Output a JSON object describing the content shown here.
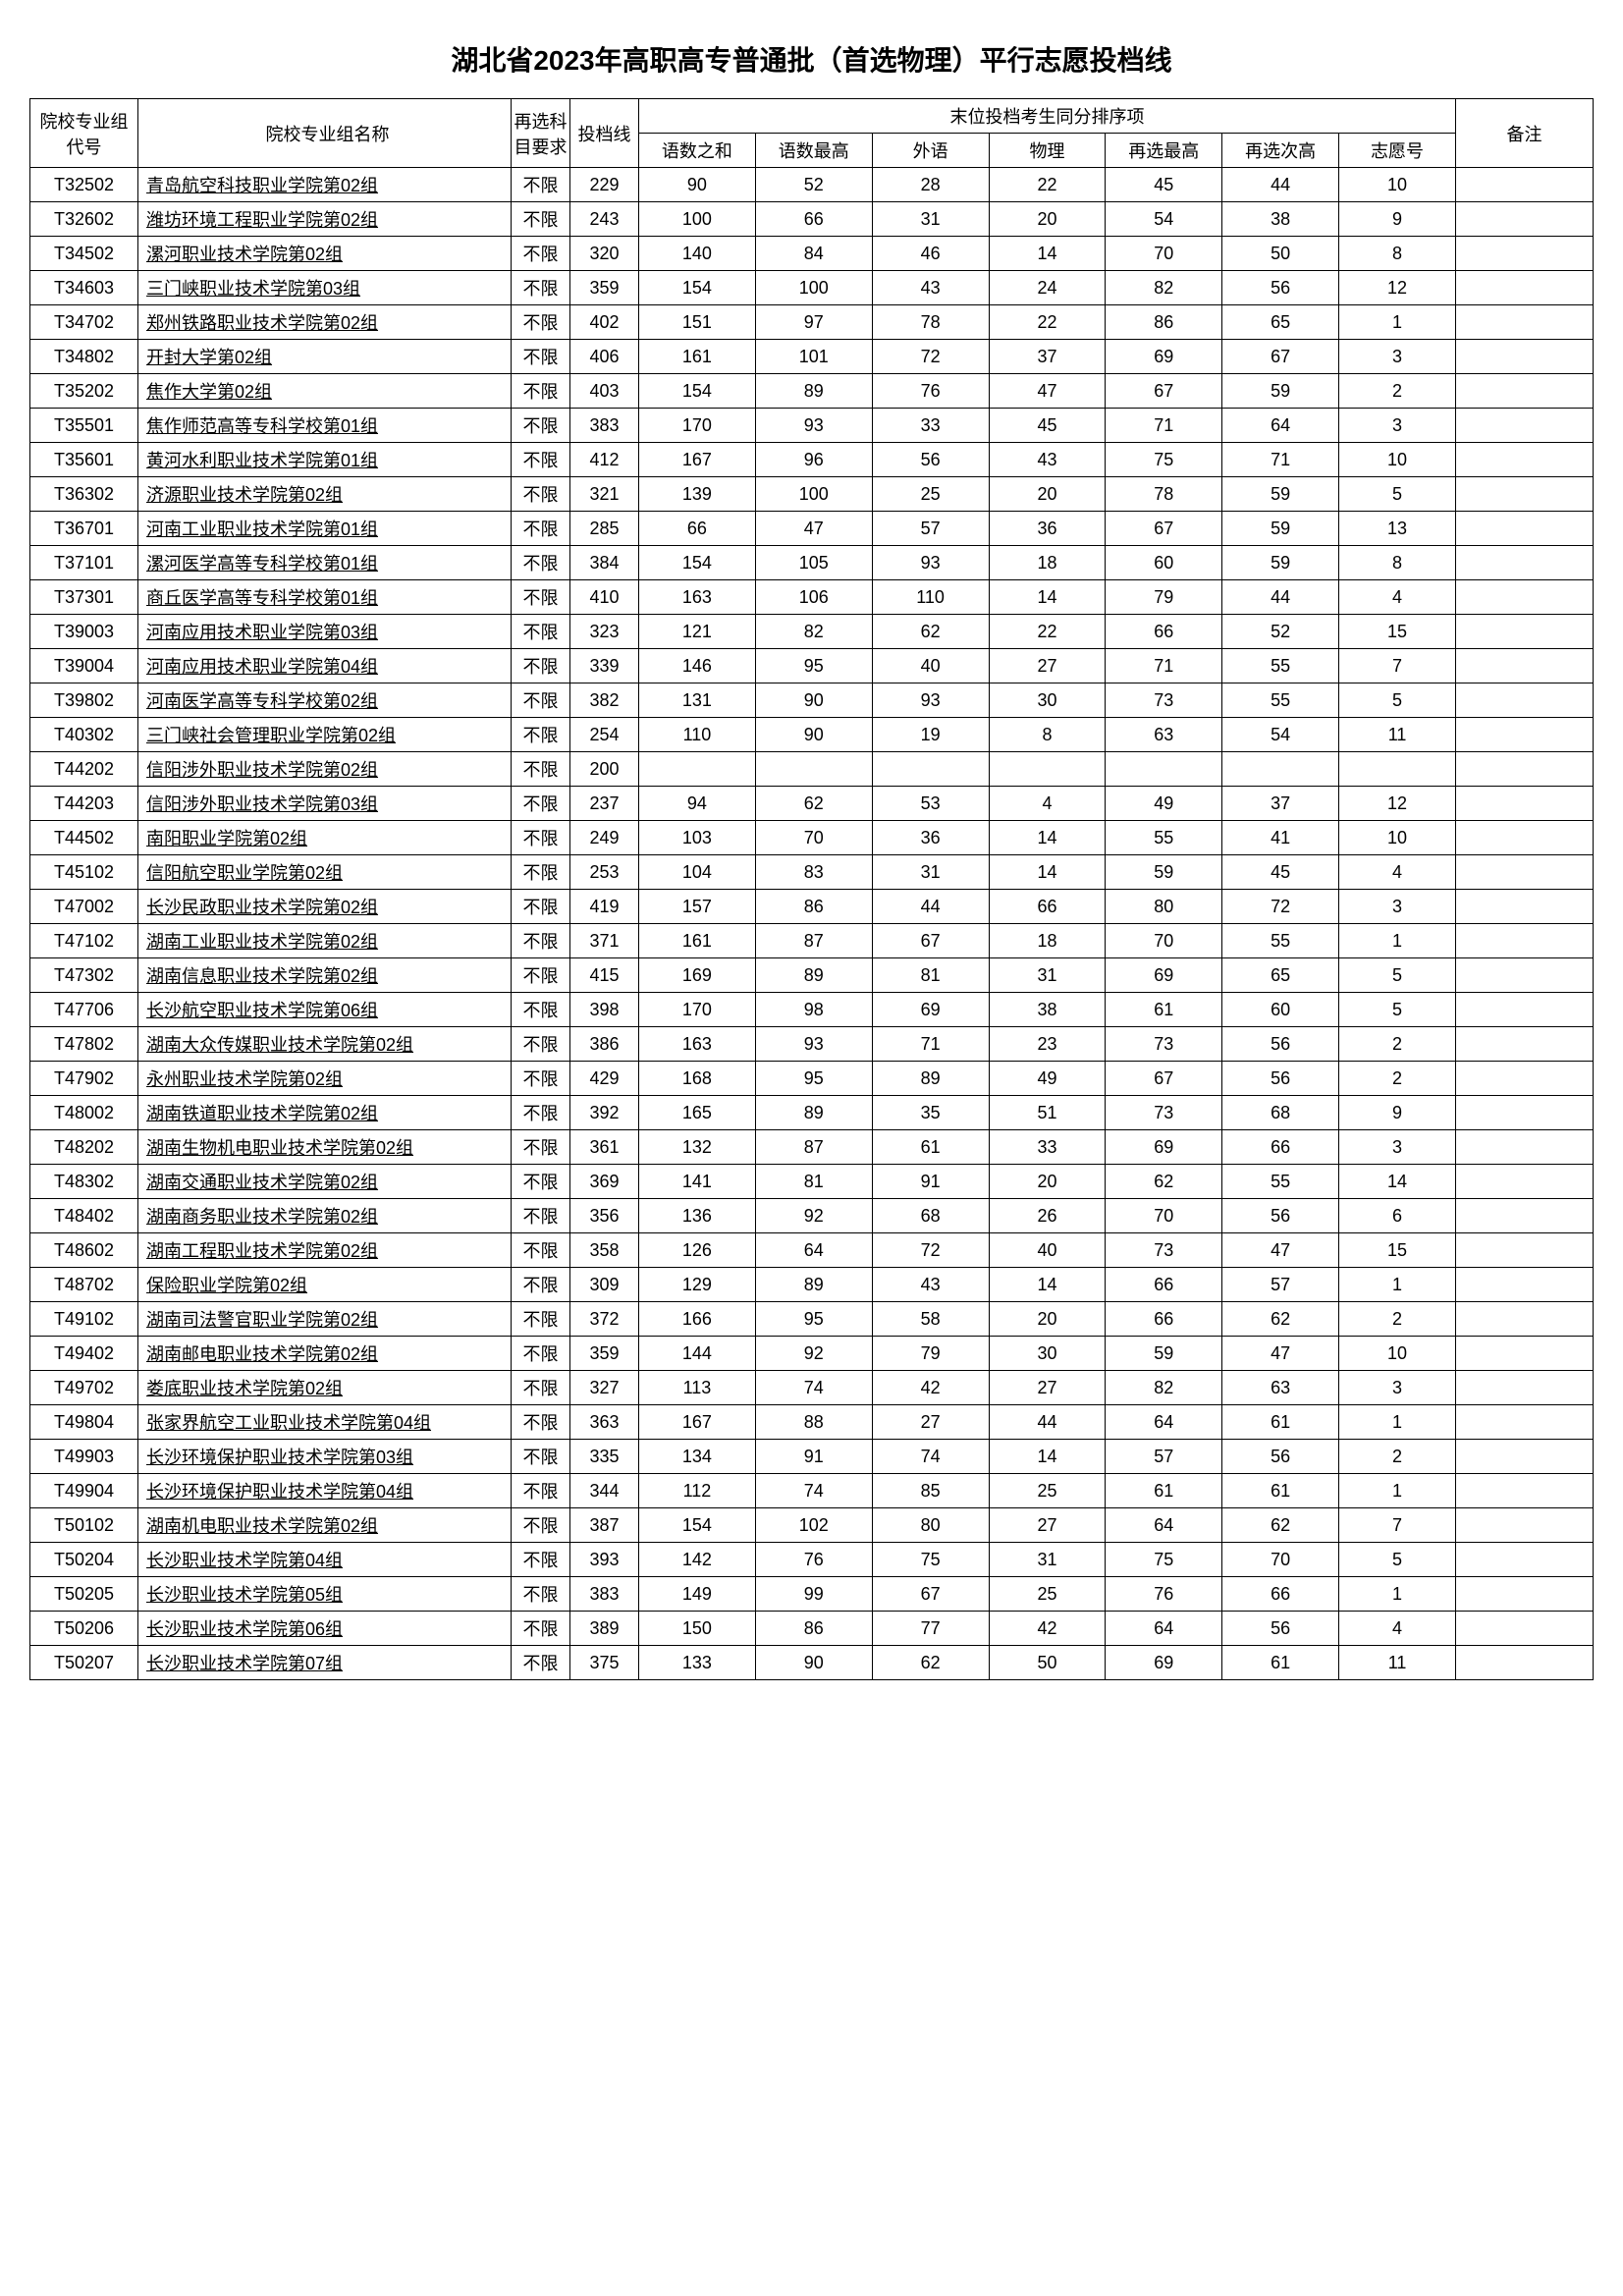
{
  "title": "湖北省2023年高职高专普通批（首选物理）平行志愿投档线",
  "headers": {
    "code": "院校专业组代号",
    "name": "院校专业组名称",
    "req": "再选科目要求",
    "score": "投档线",
    "tiebreak": "末位投档考生同分排序项",
    "yushu_sum": "语数之和",
    "yushu_max": "语数最高",
    "waiyu": "外语",
    "wuli": "物理",
    "zaixuan_max": "再选最高",
    "zaixuan_second": "再选次高",
    "zhiyuan": "志愿号",
    "remark": "备注"
  },
  "rows": [
    {
      "code": "T32502",
      "name": "青岛航空科技职业学院第02组",
      "req": "不限",
      "score": "229",
      "c1": "90",
      "c2": "52",
      "c3": "28",
      "c4": "22",
      "c5": "45",
      "c6": "44",
      "c7": "10",
      "remark": ""
    },
    {
      "code": "T32602",
      "name": "潍坊环境工程职业学院第02组",
      "req": "不限",
      "score": "243",
      "c1": "100",
      "c2": "66",
      "c3": "31",
      "c4": "20",
      "c5": "54",
      "c6": "38",
      "c7": "9",
      "remark": ""
    },
    {
      "code": "T34502",
      "name": "漯河职业技术学院第02组",
      "req": "不限",
      "score": "320",
      "c1": "140",
      "c2": "84",
      "c3": "46",
      "c4": "14",
      "c5": "70",
      "c6": "50",
      "c7": "8",
      "remark": ""
    },
    {
      "code": "T34603",
      "name": "三门峡职业技术学院第03组",
      "req": "不限",
      "score": "359",
      "c1": "154",
      "c2": "100",
      "c3": "43",
      "c4": "24",
      "c5": "82",
      "c6": "56",
      "c7": "12",
      "remark": ""
    },
    {
      "code": "T34702",
      "name": "郑州铁路职业技术学院第02组",
      "req": "不限",
      "score": "402",
      "c1": "151",
      "c2": "97",
      "c3": "78",
      "c4": "22",
      "c5": "86",
      "c6": "65",
      "c7": "1",
      "remark": ""
    },
    {
      "code": "T34802",
      "name": "开封大学第02组",
      "req": "不限",
      "score": "406",
      "c1": "161",
      "c2": "101",
      "c3": "72",
      "c4": "37",
      "c5": "69",
      "c6": "67",
      "c7": "3",
      "remark": ""
    },
    {
      "code": "T35202",
      "name": "焦作大学第02组",
      "req": "不限",
      "score": "403",
      "c1": "154",
      "c2": "89",
      "c3": "76",
      "c4": "47",
      "c5": "67",
      "c6": "59",
      "c7": "2",
      "remark": ""
    },
    {
      "code": "T35501",
      "name": "焦作师范高等专科学校第01组",
      "req": "不限",
      "score": "383",
      "c1": "170",
      "c2": "93",
      "c3": "33",
      "c4": "45",
      "c5": "71",
      "c6": "64",
      "c7": "3",
      "remark": ""
    },
    {
      "code": "T35601",
      "name": "黄河水利职业技术学院第01组",
      "req": "不限",
      "score": "412",
      "c1": "167",
      "c2": "96",
      "c3": "56",
      "c4": "43",
      "c5": "75",
      "c6": "71",
      "c7": "10",
      "remark": ""
    },
    {
      "code": "T36302",
      "name": "济源职业技术学院第02组",
      "req": "不限",
      "score": "321",
      "c1": "139",
      "c2": "100",
      "c3": "25",
      "c4": "20",
      "c5": "78",
      "c6": "59",
      "c7": "5",
      "remark": ""
    },
    {
      "code": "T36701",
      "name": "河南工业职业技术学院第01组",
      "req": "不限",
      "score": "285",
      "c1": "66",
      "c2": "47",
      "c3": "57",
      "c4": "36",
      "c5": "67",
      "c6": "59",
      "c7": "13",
      "remark": ""
    },
    {
      "code": "T37101",
      "name": "漯河医学高等专科学校第01组",
      "req": "不限",
      "score": "384",
      "c1": "154",
      "c2": "105",
      "c3": "93",
      "c4": "18",
      "c5": "60",
      "c6": "59",
      "c7": "8",
      "remark": ""
    },
    {
      "code": "T37301",
      "name": "商丘医学高等专科学校第01组",
      "req": "不限",
      "score": "410",
      "c1": "163",
      "c2": "106",
      "c3": "110",
      "c4": "14",
      "c5": "79",
      "c6": "44",
      "c7": "4",
      "remark": ""
    },
    {
      "code": "T39003",
      "name": "河南应用技术职业学院第03组",
      "req": "不限",
      "score": "323",
      "c1": "121",
      "c2": "82",
      "c3": "62",
      "c4": "22",
      "c5": "66",
      "c6": "52",
      "c7": "15",
      "remark": ""
    },
    {
      "code": "T39004",
      "name": "河南应用技术职业学院第04组",
      "req": "不限",
      "score": "339",
      "c1": "146",
      "c2": "95",
      "c3": "40",
      "c4": "27",
      "c5": "71",
      "c6": "55",
      "c7": "7",
      "remark": ""
    },
    {
      "code": "T39802",
      "name": "河南医学高等专科学校第02组",
      "req": "不限",
      "score": "382",
      "c1": "131",
      "c2": "90",
      "c3": "93",
      "c4": "30",
      "c5": "73",
      "c6": "55",
      "c7": "5",
      "remark": ""
    },
    {
      "code": "T40302",
      "name": "三门峡社会管理职业学院第02组",
      "req": "不限",
      "score": "254",
      "c1": "110",
      "c2": "90",
      "c3": "19",
      "c4": "8",
      "c5": "63",
      "c6": "54",
      "c7": "11",
      "remark": ""
    },
    {
      "code": "T44202",
      "name": "信阳涉外职业技术学院第02组",
      "req": "不限",
      "score": "200",
      "c1": "",
      "c2": "",
      "c3": "",
      "c4": "",
      "c5": "",
      "c6": "",
      "c7": "",
      "remark": ""
    },
    {
      "code": "T44203",
      "name": "信阳涉外职业技术学院第03组",
      "req": "不限",
      "score": "237",
      "c1": "94",
      "c2": "62",
      "c3": "53",
      "c4": "4",
      "c5": "49",
      "c6": "37",
      "c7": "12",
      "remark": ""
    },
    {
      "code": "T44502",
      "name": "南阳职业学院第02组",
      "req": "不限",
      "score": "249",
      "c1": "103",
      "c2": "70",
      "c3": "36",
      "c4": "14",
      "c5": "55",
      "c6": "41",
      "c7": "10",
      "remark": ""
    },
    {
      "code": "T45102",
      "name": "信阳航空职业学院第02组",
      "req": "不限",
      "score": "253",
      "c1": "104",
      "c2": "83",
      "c3": "31",
      "c4": "14",
      "c5": "59",
      "c6": "45",
      "c7": "4",
      "remark": ""
    },
    {
      "code": "T47002",
      "name": "长沙民政职业技术学院第02组",
      "req": "不限",
      "score": "419",
      "c1": "157",
      "c2": "86",
      "c3": "44",
      "c4": "66",
      "c5": "80",
      "c6": "72",
      "c7": "3",
      "remark": ""
    },
    {
      "code": "T47102",
      "name": "湖南工业职业技术学院第02组",
      "req": "不限",
      "score": "371",
      "c1": "161",
      "c2": "87",
      "c3": "67",
      "c4": "18",
      "c5": "70",
      "c6": "55",
      "c7": "1",
      "remark": ""
    },
    {
      "code": "T47302",
      "name": "湖南信息职业技术学院第02组",
      "req": "不限",
      "score": "415",
      "c1": "169",
      "c2": "89",
      "c3": "81",
      "c4": "31",
      "c5": "69",
      "c6": "65",
      "c7": "5",
      "remark": ""
    },
    {
      "code": "T47706",
      "name": "长沙航空职业技术学院第06组",
      "req": "不限",
      "score": "398",
      "c1": "170",
      "c2": "98",
      "c3": "69",
      "c4": "38",
      "c5": "61",
      "c6": "60",
      "c7": "5",
      "remark": ""
    },
    {
      "code": "T47802",
      "name": "湖南大众传媒职业技术学院第02组",
      "req": "不限",
      "score": "386",
      "c1": "163",
      "c2": "93",
      "c3": "71",
      "c4": "23",
      "c5": "73",
      "c6": "56",
      "c7": "2",
      "remark": ""
    },
    {
      "code": "T47902",
      "name": "永州职业技术学院第02组",
      "req": "不限",
      "score": "429",
      "c1": "168",
      "c2": "95",
      "c3": "89",
      "c4": "49",
      "c5": "67",
      "c6": "56",
      "c7": "2",
      "remark": ""
    },
    {
      "code": "T48002",
      "name": "湖南铁道职业技术学院第02组",
      "req": "不限",
      "score": "392",
      "c1": "165",
      "c2": "89",
      "c3": "35",
      "c4": "51",
      "c5": "73",
      "c6": "68",
      "c7": "9",
      "remark": ""
    },
    {
      "code": "T48202",
      "name": "湖南生物机电职业技术学院第02组",
      "req": "不限",
      "score": "361",
      "c1": "132",
      "c2": "87",
      "c3": "61",
      "c4": "33",
      "c5": "69",
      "c6": "66",
      "c7": "3",
      "remark": ""
    },
    {
      "code": "T48302",
      "name": "湖南交通职业技术学院第02组",
      "req": "不限",
      "score": "369",
      "c1": "141",
      "c2": "81",
      "c3": "91",
      "c4": "20",
      "c5": "62",
      "c6": "55",
      "c7": "14",
      "remark": ""
    },
    {
      "code": "T48402",
      "name": "湖南商务职业技术学院第02组",
      "req": "不限",
      "score": "356",
      "c1": "136",
      "c2": "92",
      "c3": "68",
      "c4": "26",
      "c5": "70",
      "c6": "56",
      "c7": "6",
      "remark": ""
    },
    {
      "code": "T48602",
      "name": "湖南工程职业技术学院第02组",
      "req": "不限",
      "score": "358",
      "c1": "126",
      "c2": "64",
      "c3": "72",
      "c4": "40",
      "c5": "73",
      "c6": "47",
      "c7": "15",
      "remark": ""
    },
    {
      "code": "T48702",
      "name": "保险职业学院第02组",
      "req": "不限",
      "score": "309",
      "c1": "129",
      "c2": "89",
      "c3": "43",
      "c4": "14",
      "c5": "66",
      "c6": "57",
      "c7": "1",
      "remark": ""
    },
    {
      "code": "T49102",
      "name": "湖南司法警官职业学院第02组",
      "req": "不限",
      "score": "372",
      "c1": "166",
      "c2": "95",
      "c3": "58",
      "c4": "20",
      "c5": "66",
      "c6": "62",
      "c7": "2",
      "remark": ""
    },
    {
      "code": "T49402",
      "name": "湖南邮电职业技术学院第02组",
      "req": "不限",
      "score": "359",
      "c1": "144",
      "c2": "92",
      "c3": "79",
      "c4": "30",
      "c5": "59",
      "c6": "47",
      "c7": "10",
      "remark": ""
    },
    {
      "code": "T49702",
      "name": "娄底职业技术学院第02组",
      "req": "不限",
      "score": "327",
      "c1": "113",
      "c2": "74",
      "c3": "42",
      "c4": "27",
      "c5": "82",
      "c6": "63",
      "c7": "3",
      "remark": ""
    },
    {
      "code": "T49804",
      "name": "张家界航空工业职业技术学院第04组",
      "req": "不限",
      "score": "363",
      "c1": "167",
      "c2": "88",
      "c3": "27",
      "c4": "44",
      "c5": "64",
      "c6": "61",
      "c7": "1",
      "remark": ""
    },
    {
      "code": "T49903",
      "name": "长沙环境保护职业技术学院第03组",
      "req": "不限",
      "score": "335",
      "c1": "134",
      "c2": "91",
      "c3": "74",
      "c4": "14",
      "c5": "57",
      "c6": "56",
      "c7": "2",
      "remark": ""
    },
    {
      "code": "T49904",
      "name": "长沙环境保护职业技术学院第04组",
      "req": "不限",
      "score": "344",
      "c1": "112",
      "c2": "74",
      "c3": "85",
      "c4": "25",
      "c5": "61",
      "c6": "61",
      "c7": "1",
      "remark": ""
    },
    {
      "code": "T50102",
      "name": "湖南机电职业技术学院第02组",
      "req": "不限",
      "score": "387",
      "c1": "154",
      "c2": "102",
      "c3": "80",
      "c4": "27",
      "c5": "64",
      "c6": "62",
      "c7": "7",
      "remark": ""
    },
    {
      "code": "T50204",
      "name": "长沙职业技术学院第04组",
      "req": "不限",
      "score": "393",
      "c1": "142",
      "c2": "76",
      "c3": "75",
      "c4": "31",
      "c5": "75",
      "c6": "70",
      "c7": "5",
      "remark": ""
    },
    {
      "code": "T50205",
      "name": "长沙职业技术学院第05组",
      "req": "不限",
      "score": "383",
      "c1": "149",
      "c2": "99",
      "c3": "67",
      "c4": "25",
      "c5": "76",
      "c6": "66",
      "c7": "1",
      "remark": ""
    },
    {
      "code": "T50206",
      "name": "长沙职业技术学院第06组",
      "req": "不限",
      "score": "389",
      "c1": "150",
      "c2": "86",
      "c3": "77",
      "c4": "42",
      "c5": "64",
      "c6": "56",
      "c7": "4",
      "remark": ""
    },
    {
      "code": "T50207",
      "name": "长沙职业技术学院第07组",
      "req": "不限",
      "score": "375",
      "c1": "133",
      "c2": "90",
      "c3": "62",
      "c4": "50",
      "c5": "69",
      "c6": "61",
      "c7": "11",
      "remark": ""
    }
  ]
}
